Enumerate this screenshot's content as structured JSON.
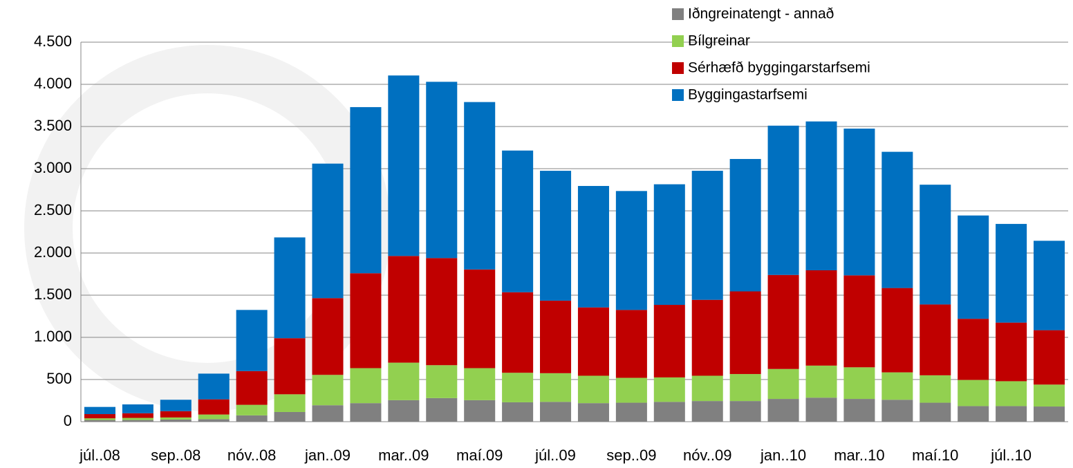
{
  "chart_data": {
    "type": "stacked_bar",
    "categories": [
      "júl..08",
      null,
      "sep..08",
      null,
      "nóv..08",
      null,
      "jan..09",
      null,
      "mar..09",
      null,
      "maí.09",
      null,
      "júl..09",
      null,
      "sep..09",
      null,
      "nóv..09",
      null,
      "jan..10",
      null,
      "mar..10",
      null,
      "maí.10",
      null,
      "júl..10",
      null
    ],
    "series": [
      {
        "name": "Iðngreinatengt - annað",
        "color": "#808080",
        "values": [
          20,
          20,
          25,
          30,
          75,
          115,
          195,
          220,
          255,
          280,
          255,
          230,
          235,
          220,
          225,
          235,
          245,
          245,
          270,
          285,
          270,
          260,
          225,
          185,
          185,
          180
        ]
      },
      {
        "name": "Bílgreinar",
        "color": "#92d050",
        "values": [
          20,
          25,
          25,
          55,
          125,
          210,
          360,
          415,
          445,
          390,
          380,
          350,
          340,
          325,
          295,
          290,
          300,
          320,
          355,
          380,
          375,
          325,
          325,
          310,
          295,
          260
        ]
      },
      {
        "name": "Sérhæfð byggingarstarfsemi",
        "color": "#c00000",
        "values": [
          50,
          55,
          75,
          180,
          400,
          665,
          910,
          1125,
          1265,
          1270,
          1170,
          955,
          860,
          810,
          805,
          860,
          900,
          980,
          1115,
          1130,
          1090,
          1000,
          840,
          725,
          695,
          645
        ]
      },
      {
        "name": "Byggingastarfsemi",
        "color": "#0070c0",
        "values": [
          85,
          105,
          135,
          305,
          725,
          1195,
          1595,
          1970,
          2140,
          2090,
          1985,
          1680,
          1540,
          1440,
          1410,
          1430,
          1530,
          1570,
          1770,
          1765,
          1740,
          1615,
          1420,
          1225,
          1170,
          1060
        ]
      }
    ],
    "ylim": [
      0,
      4500
    ],
    "yticks": [
      0,
      500,
      {
        "value": 1000,
        "label": "1.000"
      },
      {
        "value": 1500,
        "label": "1.500"
      },
      {
        "value": 2000,
        "label": "2.000"
      },
      {
        "value": 2500,
        "label": "2.500"
      },
      {
        "value": 3000,
        "label": "3.000"
      },
      {
        "value": 3500,
        "label": "3.500"
      },
      {
        "value": 4000,
        "label": "4.000"
      },
      {
        "value": 4500,
        "label": "4.500"
      }
    ],
    "grid": true,
    "legend": "top-right"
  }
}
